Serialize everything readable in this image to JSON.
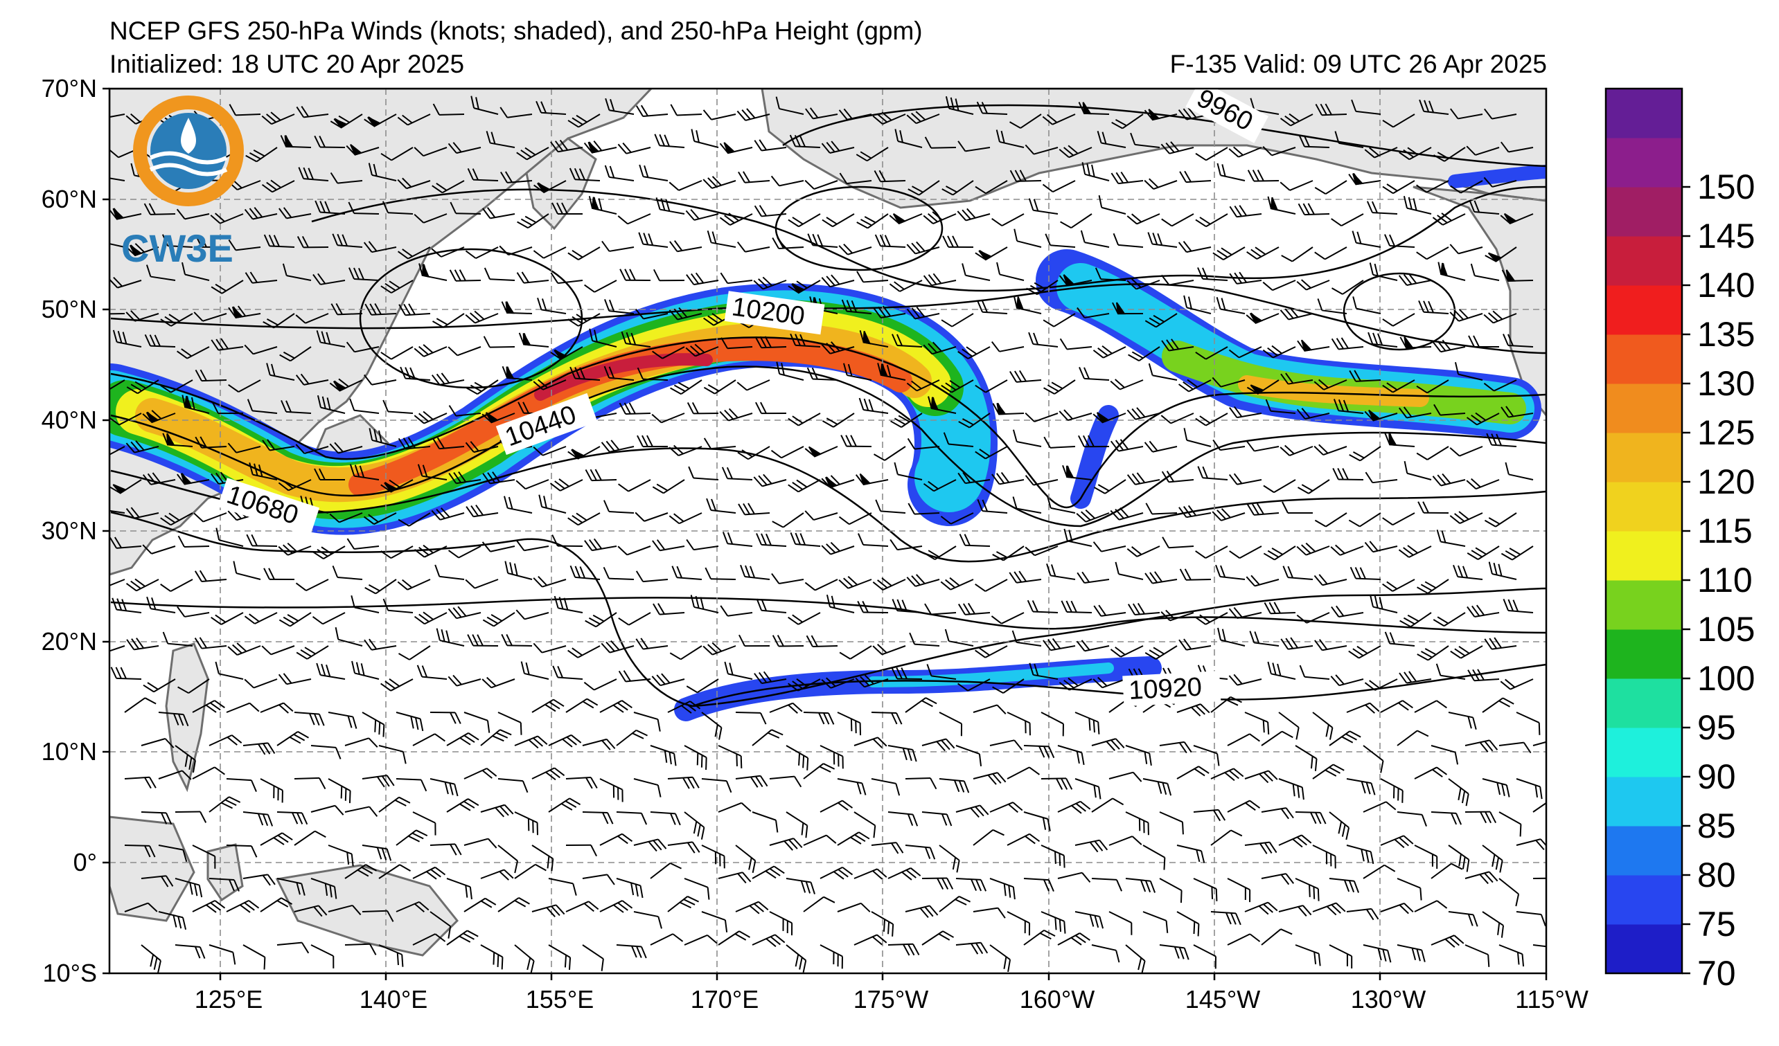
{
  "header": {
    "title": "NCEP GFS 250-hPa Winds (knots; shaded), and 250-hPa Height (gpm)",
    "initialized": "Initialized: 18 UTC 20 Apr 2025",
    "valid": "F-135  Valid: 09 UTC 26 Apr 2025"
  },
  "logo": {
    "text": "CW3E"
  },
  "axes": {
    "lat_labels": [
      "70°N",
      "60°N",
      "50°N",
      "40°N",
      "30°N",
      "20°N",
      "10°N",
      "0°",
      "10°S"
    ],
    "lon_labels": [
      "125°E",
      "140°E",
      "155°E",
      "170°E",
      "175°W",
      "160°W",
      "145°W",
      "130°W",
      "115°W"
    ]
  },
  "contours": {
    "labels": [
      "9960",
      "10200",
      "10440",
      "10680",
      "10920"
    ]
  },
  "colorbar": {
    "ticks": [
      "70",
      "75",
      "80",
      "85",
      "90",
      "95",
      "100",
      "105",
      "110",
      "115",
      "120",
      "125",
      "130",
      "135",
      "140",
      "145",
      "150"
    ],
    "colors": [
      "#1e1ec8",
      "#2846f0",
      "#1e78f0",
      "#1ec8f0",
      "#1ef0dc",
      "#1ee0a0",
      "#1eb41e",
      "#78d21e",
      "#f0f01e",
      "#f0d21e",
      "#f0b41e",
      "#f08c1e",
      "#f05a1e",
      "#f01e1e",
      "#c81e3c",
      "#a01e64",
      "#8c1e8c",
      "#641e96"
    ]
  },
  "colors": {
    "land": "#e6e6e6",
    "coast": "#6e6e6e",
    "grid": "#8c8c8c"
  }
}
